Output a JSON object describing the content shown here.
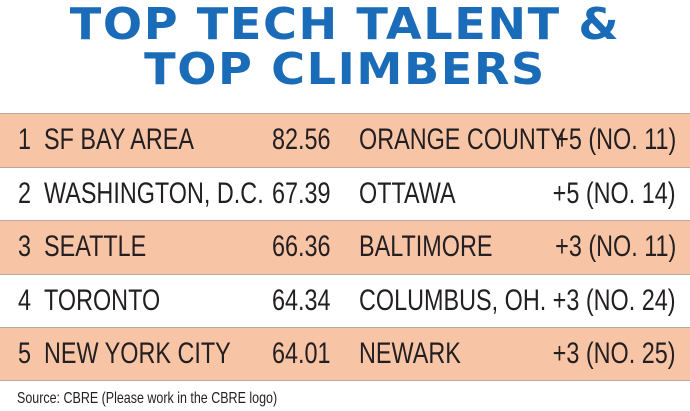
{
  "title": {
    "line1": "TOP TECH TALENT &",
    "line2": "TOP CLIMBERS"
  },
  "rows": [
    {
      "rank": "1",
      "city": "SF BAY AREA",
      "score": "82.56",
      "climber": "ORANGE COUNTY",
      "change": "+5 (NO. 11)"
    },
    {
      "rank": "2",
      "city": "WASHINGTON, D.C.",
      "score": "67.39",
      "climber": "OTTAWA",
      "change": "+5 (NO. 14)"
    },
    {
      "rank": "3",
      "city": "SEATTLE",
      "score": "66.36",
      "climber": "BALTIMORE",
      "change": "+3 (NO. 11)"
    },
    {
      "rank": "4",
      "city": "TORONTO",
      "score": "64.34",
      "climber": "COLUMBUS, OH.",
      "change": "+3 (NO. 24)"
    },
    {
      "rank": "5",
      "city": "NEW YORK CITY",
      "score": "64.01",
      "climber": "NEWARK",
      "change": "+3 (NO. 25)"
    }
  ],
  "source": "Source: CBRE (Please work in the CBRE logo)",
  "colors": {
    "title": "#1a6bb8",
    "row_shade": "#f8c4a6",
    "text": "#231f20",
    "rule": "#b8ab9e"
  }
}
